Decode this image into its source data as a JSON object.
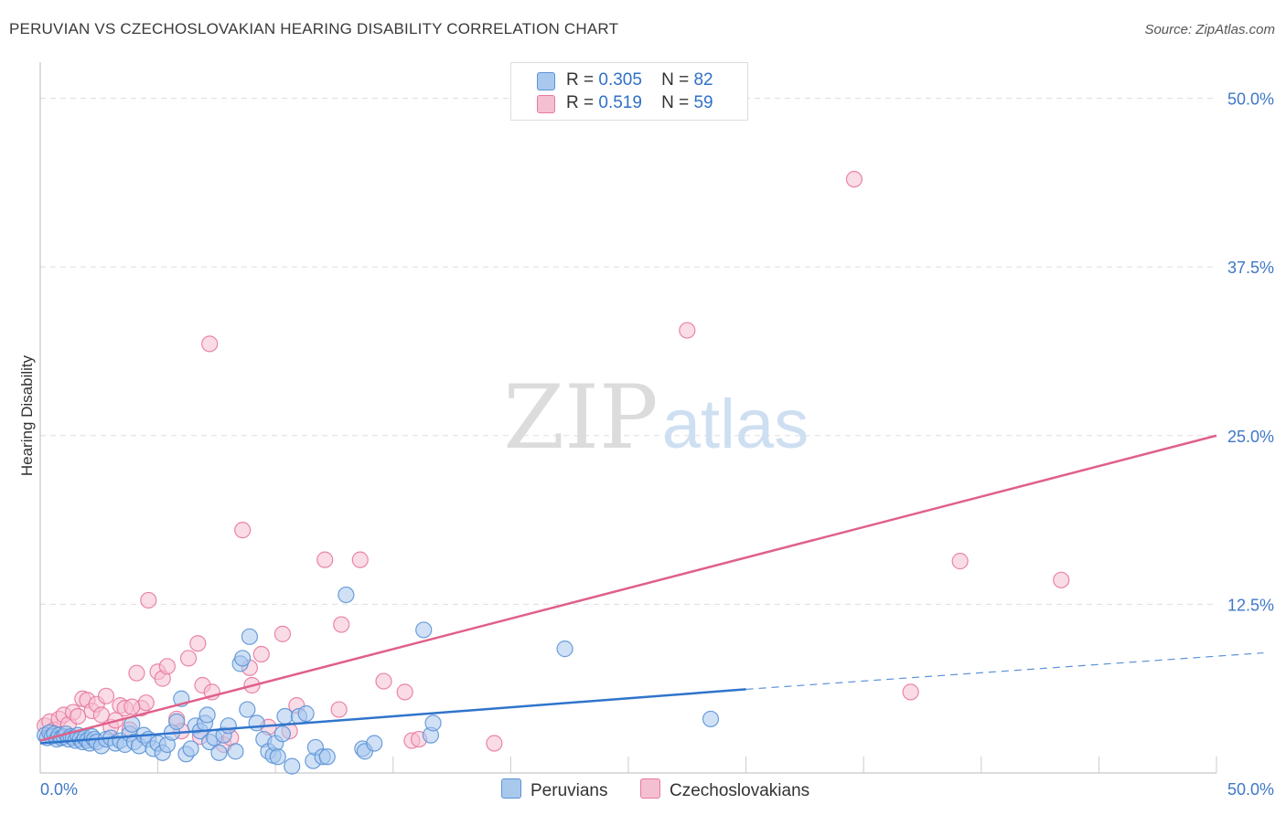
{
  "title": "PERUVIAN VS CZECHOSLOVAKIAN HEARING DISABILITY CORRELATION CHART",
  "source": "Source: ZipAtlas.com",
  "colors": {
    "peruvians": "#5b93d6",
    "peruvians_fill": "#a9c8ee",
    "czechoslovakians": "#e8799f",
    "czechoslovakians_fill": "#f5bfd2",
    "tick_label": "#3f78c6"
  },
  "legend": {
    "rows": [
      {
        "r_label": "R =",
        "r_value": "0.305",
        "n_label": "N =",
        "n_value": "82"
      },
      {
        "r_label": "R =",
        "r_value": "0.519",
        "n_label": "N =",
        "n_value": "59"
      }
    ]
  },
  "bottom_legend": [
    "Peruvians",
    "Czechoslovakians"
  ],
  "watermark": {
    "zip": "ZIP",
    "atlas": "atlas"
  },
  "chart_data": {
    "type": "scatter",
    "title": "PERUVIAN VS CZECHOSLOVAKIAN HEARING DISABILITY CORRELATION CHART",
    "xlabel": "",
    "ylabel": "Hearing Disability",
    "xlim": [
      0,
      50
    ],
    "ylim": [
      0,
      52
    ],
    "x_tick_labels": [
      "0.0%",
      "50.0%"
    ],
    "y_ticks": [
      12.5,
      25.0,
      37.5,
      50.0
    ],
    "y_tick_labels": [
      "12.5%",
      "25.0%",
      "37.5%",
      "50.0%"
    ],
    "grid": true,
    "legend_position": "top-center",
    "series": [
      {
        "name": "Peruvians",
        "points": [
          [
            0.2,
            2.8
          ],
          [
            0.3,
            2.6
          ],
          [
            0.4,
            3.0
          ],
          [
            0.5,
            2.7
          ],
          [
            0.6,
            2.9
          ],
          [
            0.7,
            2.5
          ],
          [
            0.8,
            2.8
          ],
          [
            0.9,
            2.6
          ],
          [
            1.0,
            2.7
          ],
          [
            1.1,
            2.9
          ],
          [
            1.2,
            2.5
          ],
          [
            1.3,
            2.7
          ],
          [
            1.4,
            2.6
          ],
          [
            1.5,
            2.4
          ],
          [
            1.6,
            2.8
          ],
          [
            1.7,
            2.5
          ],
          [
            1.8,
            2.3
          ],
          [
            1.9,
            2.6
          ],
          [
            2.0,
            2.4
          ],
          [
            2.1,
            2.2
          ],
          [
            2.2,
            2.7
          ],
          [
            2.3,
            2.5
          ],
          [
            2.4,
            2.3
          ],
          [
            2.6,
            2.0
          ],
          [
            2.8,
            2.5
          ],
          [
            3.0,
            2.6
          ],
          [
            3.2,
            2.2
          ],
          [
            3.4,
            2.4
          ],
          [
            3.6,
            2.1
          ],
          [
            3.8,
            2.9
          ],
          [
            3.9,
            3.6
          ],
          [
            4.0,
            2.3
          ],
          [
            4.2,
            2.0
          ],
          [
            4.4,
            2.8
          ],
          [
            4.6,
            2.5
          ],
          [
            4.8,
            1.8
          ],
          [
            5.0,
            2.2
          ],
          [
            5.2,
            1.5
          ],
          [
            5.4,
            2.1
          ],
          [
            5.6,
            3.0
          ],
          [
            5.8,
            3.8
          ],
          [
            6.0,
            5.5
          ],
          [
            6.2,
            1.4
          ],
          [
            6.4,
            1.8
          ],
          [
            6.6,
            3.5
          ],
          [
            6.8,
            3.1
          ],
          [
            7.0,
            3.7
          ],
          [
            7.1,
            4.3
          ],
          [
            7.2,
            2.3
          ],
          [
            7.4,
            2.6
          ],
          [
            7.6,
            1.5
          ],
          [
            7.8,
            2.8
          ],
          [
            8.0,
            3.5
          ],
          [
            8.3,
            1.6
          ],
          [
            8.5,
            8.1
          ],
          [
            8.6,
            8.5
          ],
          [
            8.8,
            4.7
          ],
          [
            8.9,
            10.1
          ],
          [
            9.2,
            3.7
          ],
          [
            9.5,
            2.5
          ],
          [
            9.7,
            1.6
          ],
          [
            9.9,
            1.3
          ],
          [
            10.0,
            2.2
          ],
          [
            10.1,
            1.2
          ],
          [
            10.4,
            4.2
          ],
          [
            10.7,
            0.5
          ],
          [
            11.0,
            4.2
          ],
          [
            11.3,
            4.4
          ],
          [
            11.6,
            0.9
          ],
          [
            11.7,
            1.9
          ],
          [
            12.0,
            1.2
          ],
          [
            12.2,
            1.2
          ],
          [
            13.0,
            13.2
          ],
          [
            13.7,
            1.8
          ],
          [
            13.8,
            1.6
          ],
          [
            14.2,
            2.2
          ],
          [
            16.3,
            10.6
          ],
          [
            16.6,
            2.8
          ],
          [
            16.7,
            3.7
          ],
          [
            22.3,
            9.2
          ],
          [
            28.5,
            4.0
          ],
          [
            10.3,
            2.9
          ]
        ]
      },
      {
        "name": "Czechoslovakians",
        "points": [
          [
            0.2,
            3.5
          ],
          [
            0.4,
            3.8
          ],
          [
            0.6,
            3.2
          ],
          [
            0.8,
            4.0
          ],
          [
            1.0,
            4.3
          ],
          [
            1.2,
            3.6
          ],
          [
            1.4,
            4.5
          ],
          [
            1.6,
            4.2
          ],
          [
            1.8,
            5.5
          ],
          [
            2.0,
            5.4
          ],
          [
            2.2,
            4.6
          ],
          [
            2.4,
            5.1
          ],
          [
            2.6,
            4.3
          ],
          [
            2.8,
            5.7
          ],
          [
            3.0,
            3.4
          ],
          [
            3.2,
            3.9
          ],
          [
            3.4,
            5.0
          ],
          [
            3.6,
            4.8
          ],
          [
            3.8,
            3.2
          ],
          [
            4.1,
            7.4
          ],
          [
            4.3,
            4.8
          ],
          [
            4.5,
            5.2
          ],
          [
            4.6,
            12.8
          ],
          [
            5.0,
            7.5
          ],
          [
            5.2,
            7.0
          ],
          [
            5.4,
            7.9
          ],
          [
            5.8,
            4.0
          ],
          [
            6.0,
            3.1
          ],
          [
            6.3,
            8.5
          ],
          [
            6.7,
            9.6
          ],
          [
            6.8,
            2.7
          ],
          [
            6.9,
            6.5
          ],
          [
            7.2,
            31.8
          ],
          [
            7.3,
            6.0
          ],
          [
            7.8,
            2.1
          ],
          [
            8.6,
            18.0
          ],
          [
            8.9,
            7.8
          ],
          [
            9.0,
            6.5
          ],
          [
            9.4,
            8.8
          ],
          [
            9.7,
            3.4
          ],
          [
            10.3,
            10.3
          ],
          [
            10.6,
            3.1
          ],
          [
            10.9,
            5.0
          ],
          [
            12.1,
            15.8
          ],
          [
            12.7,
            4.7
          ],
          [
            12.8,
            11.0
          ],
          [
            13.6,
            15.8
          ],
          [
            14.6,
            6.8
          ],
          [
            15.5,
            6.0
          ],
          [
            15.8,
            2.4
          ],
          [
            16.1,
            2.5
          ],
          [
            19.3,
            2.2
          ],
          [
            27.5,
            32.8
          ],
          [
            34.6,
            44.0
          ],
          [
            37.0,
            6.0
          ],
          [
            39.1,
            15.7
          ],
          [
            43.4,
            14.3
          ],
          [
            3.9,
            4.9
          ],
          [
            8.1,
            2.6
          ]
        ]
      }
    ],
    "trend_lines": [
      {
        "series": "Peruvians",
        "solid": [
          [
            0,
            2.2
          ],
          [
            30,
            6.2
          ]
        ],
        "dashed": [
          [
            30,
            6.2
          ],
          [
            52,
            8.9
          ]
        ]
      },
      {
        "series": "Czechoslovakians",
        "solid": [
          [
            0,
            2.4
          ],
          [
            50,
            25.0
          ]
        ]
      }
    ]
  }
}
